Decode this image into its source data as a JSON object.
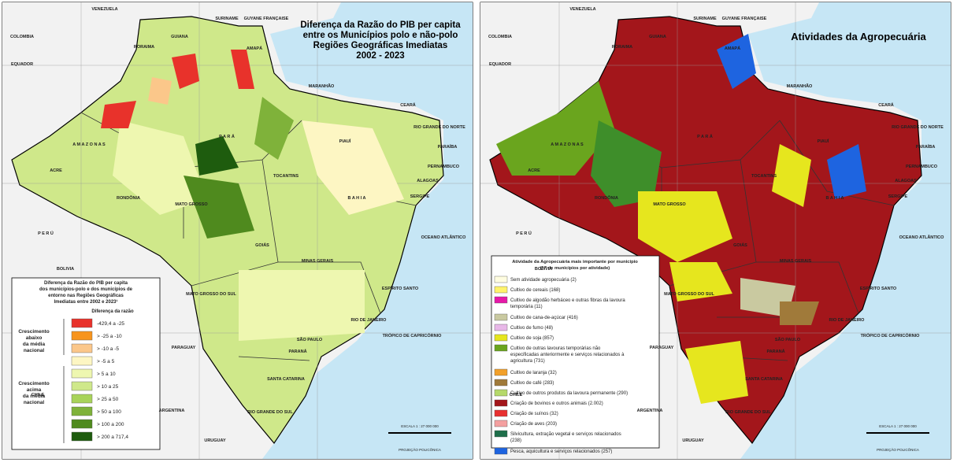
{
  "left_map": {
    "title_lines": [
      "Diferença da Razão do PIB per capita",
      "entre os Municípios polo e não-polo",
      "Regiões Geográficas Imediatas",
      "2002 - 2023"
    ],
    "legend": {
      "title_lines": [
        "Diferença da Razão do PIB per capita",
        "dos municípios-polo e dos municípios de",
        "entorno nas Regiões Geográficas",
        "Imediatas entre 2002 e 2023¹"
      ],
      "subtitle": "Diferença da razão",
      "groups": [
        [
          "Crescimento",
          "abaixo",
          "da média",
          "nacional"
        ],
        [
          "Crescimento",
          "acima",
          "da média",
          "nacional"
        ]
      ],
      "items": [
        {
          "label": "-429,4 a -25",
          "color": "#e8322b"
        },
        {
          "label": "> -25 a -10",
          "color": "#f7941d"
        },
        {
          "label": "> -10 a -5",
          "color": "#fbc78a"
        },
        {
          "label": "> -5 a 5",
          "color": "#fdf6c3"
        },
        {
          "label": "> 5 a 10",
          "color": "#eef7b0"
        },
        {
          "label": "> 10 a 25",
          "color": "#cfe88a"
        },
        {
          "label": "> 25 a 50",
          "color": "#a8d35a"
        },
        {
          "label": "> 50 a 100",
          "color": "#7fb23a"
        },
        {
          "label": "> 100 a 200",
          "color": "#4f8a1e"
        },
        {
          "label": "> 200 a 717,4",
          "color": "#1e5c0e"
        }
      ]
    }
  },
  "right_map": {
    "title": "Atividades da Agropecuária",
    "legend": {
      "title_lines": [
        "Atividade da Agropecuária mais importante por município",
        "(Nº de municípios por atividade)"
      ],
      "items": [
        {
          "label": [
            "Sem atividade agropecuária  (2)"
          ],
          "color": "#fffde0"
        },
        {
          "label": [
            "Cultivo de cereais (168)"
          ],
          "color": "#fff36b"
        },
        {
          "label": [
            "Cultivo de algodão herbáceo e outras fibras da lavoura",
            "temporária (11)"
          ],
          "color": "#e619a8"
        },
        {
          "label": [
            "Cultivo de cana-de-açúcar (416)"
          ],
          "color": "#c9c9a0"
        },
        {
          "label": [
            "Cultivo de fumo (48)"
          ],
          "color": "#e8b8e8"
        },
        {
          "label": [
            "Cultivo de soja (857)"
          ],
          "color": "#e6e61e"
        },
        {
          "label": [
            "Cultivo de outras lavouras temporárias não",
            "especificadas anteriormente e serviços relacionados à",
            "agricultura (731)"
          ],
          "color": "#6aa51e"
        },
        {
          "label": [
            "Cultivo de laranja (32)"
          ],
          "color": "#f2a02a"
        },
        {
          "label": [
            "Cultivo de café (283)"
          ],
          "color": "#a07a3a"
        },
        {
          "label": [
            "Cultivo de outros produtos da lavoura permanente (290)"
          ],
          "color": "#b5d96b"
        },
        {
          "label": [
            "Criação de bovinos e outros animais (2.002)"
          ],
          "color": "#a3161b"
        },
        {
          "label": [
            "Criação de suínos (32)"
          ],
          "color": "#e83030"
        },
        {
          "label": [
            "Criação de aves (203)"
          ],
          "color": "#f4a0a0"
        },
        {
          "label": [
            "Silvicultura, extração vegetal e serviços relacionados",
            "(238)"
          ],
          "color": "#1e6e4a"
        },
        {
          "label": [
            "Pesca, aquicultura e serviços relacionados (257)"
          ],
          "color": "#1e64e0"
        }
      ]
    }
  },
  "places": [
    "VENEZUELA",
    "COLOMBIA",
    "GUIANA",
    "SURINAME",
    "GUYANE FRANÇAISE",
    "RORAIMA",
    "AMAPÁ",
    "A M A Z O N A S",
    "P A R Á",
    "MARANHÃO",
    "CEARÁ",
    "RIO GRANDE DO NORTE",
    "PARAÍBA",
    "PERNAMBUCO",
    "ALAGOAS",
    "SERGIPE",
    "B A H I A",
    "PIAUÍ",
    "TOCANTINS",
    "MATO GROSSO",
    "RONDÔNIA",
    "ACRE",
    "GOIÁS",
    "MINAS GERAIS",
    "ESPÍRITO SANTO",
    "RIO DE JANEIRO",
    "SÃO PAULO",
    "PARANÁ",
    "SANTA CATARINA",
    "RIO GRANDE DO SUL",
    "MATO GROSSO DO SUL",
    "P E R Ú",
    "BOLIVIA",
    "PARAGUAY",
    "ARGENTINA",
    "URUGUAY",
    "CHILE",
    "OCEANO ATLÂNTICO",
    "EQUADOR",
    "TRÓPICO DE CAPRICÓRNIO"
  ],
  "scale": [
    "ESCALA 1 : 27 000 000",
    "PROJEÇÃO POLICÔNICA"
  ]
}
